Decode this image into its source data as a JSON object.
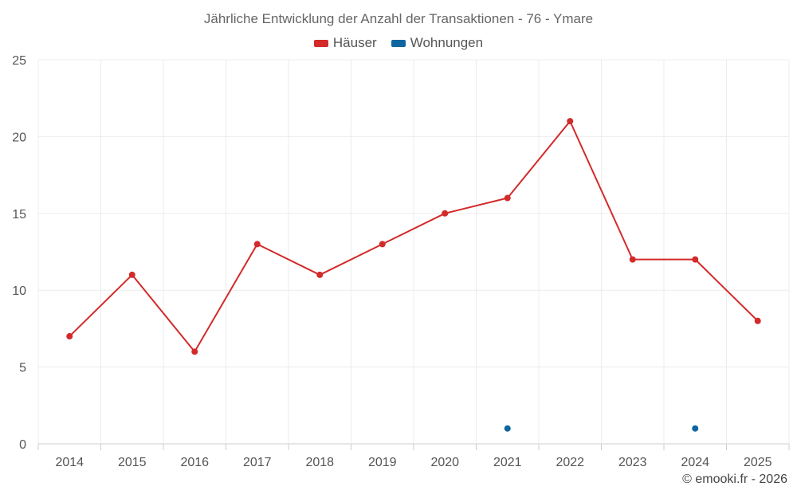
{
  "chart_data": {
    "type": "line",
    "title": "Jährliche Entwicklung der Anzahl der Transaktionen - 76 - Ymare",
    "categories": [
      "2014",
      "2015",
      "2016",
      "2017",
      "2018",
      "2019",
      "2020",
      "2021",
      "2022",
      "2023",
      "2024",
      "2025"
    ],
    "series": [
      {
        "name": "Häuser",
        "color": "#d32a2a",
        "values": [
          7,
          11,
          6,
          13,
          11,
          13,
          15,
          16,
          21,
          12,
          12,
          8
        ],
        "line": true
      },
      {
        "name": "Wohnungen",
        "color": "#0d66a0",
        "values": [
          null,
          null,
          null,
          null,
          null,
          null,
          null,
          1,
          null,
          null,
          1,
          null
        ],
        "line": false
      }
    ],
    "ylim": [
      0,
      25
    ],
    "yticks": [
      0,
      5,
      10,
      15,
      20,
      25
    ],
    "xlabel": "",
    "ylabel": "",
    "grid": true,
    "legend_position": "top-center"
  },
  "credit": "© emooki.fr - 2026"
}
